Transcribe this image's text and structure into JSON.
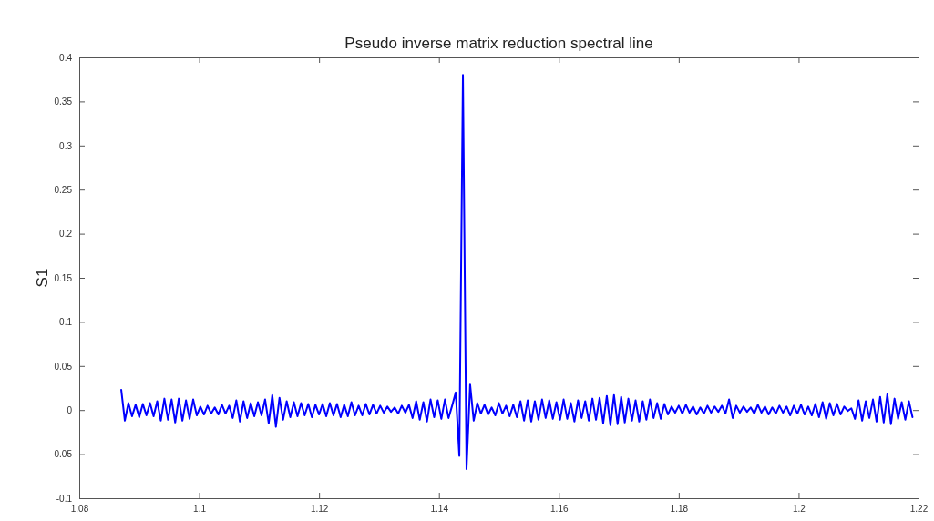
{
  "chart_data": {
    "type": "line",
    "title": "Pseudo inverse matrix reduction spectral line",
    "ylabel": "S1",
    "xlim": [
      1.08,
      1.22
    ],
    "ylim": [
      -0.1,
      0.4
    ],
    "xticks": [
      1.08,
      1.1,
      1.12,
      1.14,
      1.16,
      1.18,
      1.2,
      1.22
    ],
    "yticks": [
      -0.1,
      -0.05,
      0,
      0.05,
      0.1,
      0.15,
      0.2,
      0.25,
      0.3,
      0.35,
      0.4
    ],
    "grid": false,
    "marker": "none",
    "line_style": "solid",
    "series": [
      {
        "color": "#0000ff",
        "x": [
          1.087,
          1.0876,
          1.0882,
          1.0888,
          1.0894,
          1.09,
          1.0906,
          1.0912,
          1.0918,
          1.0924,
          1.093,
          1.0936,
          1.0942,
          1.0948,
          1.0954,
          1.096,
          1.0966,
          1.0972,
          1.0978,
          1.0984,
          1.099,
          1.0996,
          1.1002,
          1.1008,
          1.1014,
          1.102,
          1.1026,
          1.1032,
          1.1038,
          1.1044,
          1.105,
          1.1056,
          1.1062,
          1.1068,
          1.1074,
          1.108,
          1.1086,
          1.1092,
          1.1098,
          1.1104,
          1.111,
          1.1116,
          1.1122,
          1.1128,
          1.1134,
          1.114,
          1.1146,
          1.1152,
          1.1158,
          1.1164,
          1.117,
          1.1176,
          1.1182,
          1.1188,
          1.1194,
          1.12,
          1.1206,
          1.1212,
          1.1218,
          1.1224,
          1.123,
          1.1236,
          1.1242,
          1.1248,
          1.1254,
          1.126,
          1.1266,
          1.1272,
          1.1278,
          1.1284,
          1.129,
          1.1296,
          1.1302,
          1.1308,
          1.1314,
          1.132,
          1.1326,
          1.1332,
          1.1338,
          1.1344,
          1.135,
          1.1356,
          1.1362,
          1.1368,
          1.1374,
          1.138,
          1.1386,
          1.1392,
          1.1398,
          1.1404,
          1.141,
          1.1416,
          1.1422,
          1.1428,
          1.1434,
          1.144,
          1.1446,
          1.1452,
          1.1458,
          1.1464,
          1.147,
          1.1476,
          1.1482,
          1.1488,
          1.1494,
          1.15,
          1.1506,
          1.1512,
          1.1518,
          1.1524,
          1.153,
          1.1536,
          1.1542,
          1.1548,
          1.1554,
          1.156,
          1.1566,
          1.1572,
          1.1578,
          1.1584,
          1.159,
          1.1596,
          1.1602,
          1.1608,
          1.1614,
          1.162,
          1.1626,
          1.1632,
          1.1638,
          1.1644,
          1.165,
          1.1656,
          1.1662,
          1.1668,
          1.1674,
          1.168,
          1.1686,
          1.1692,
          1.1698,
          1.1704,
          1.171,
          1.1716,
          1.1722,
          1.1728,
          1.1734,
          1.174,
          1.1746,
          1.1752,
          1.1758,
          1.1764,
          1.177,
          1.1776,
          1.1782,
          1.1788,
          1.1794,
          1.18,
          1.1806,
          1.1812,
          1.1818,
          1.1824,
          1.183,
          1.1836,
          1.1842,
          1.1848,
          1.1854,
          1.186,
          1.1866,
          1.1872,
          1.1878,
          1.1884,
          1.189,
          1.1896,
          1.1902,
          1.1908,
          1.1914,
          1.192,
          1.1926,
          1.1932,
          1.1938,
          1.1944,
          1.195,
          1.1956,
          1.1962,
          1.1968,
          1.1974,
          1.198,
          1.1986,
          1.1992,
          1.1998,
          1.2004,
          1.201,
          1.2016,
          1.2022,
          1.2028,
          1.2034,
          1.204,
          1.2046,
          1.2052,
          1.2058,
          1.2064,
          1.207,
          1.2076,
          1.2082,
          1.2088,
          1.2094,
          1.21,
          1.2106,
          1.2112,
          1.2118,
          1.2124,
          1.213,
          1.2136,
          1.2142,
          1.2148,
          1.2154,
          1.216,
          1.2166,
          1.2172,
          1.2178,
          1.2184,
          1.219
        ],
        "values": [
          0.023,
          -0.012,
          0.008,
          -0.007,
          0.006,
          -0.008,
          0.007,
          -0.006,
          0.008,
          -0.007,
          0.01,
          -0.012,
          0.013,
          -0.011,
          0.012,
          -0.014,
          0.013,
          -0.012,
          0.011,
          -0.01,
          0.012,
          -0.006,
          0.004,
          -0.005,
          0.005,
          -0.004,
          0.003,
          -0.005,
          0.006,
          -0.004,
          0.005,
          -0.009,
          0.011,
          -0.013,
          0.01,
          -0.009,
          0.008,
          -0.007,
          0.009,
          -0.006,
          0.012,
          -0.015,
          0.017,
          -0.019,
          0.014,
          -0.011,
          0.01,
          -0.008,
          0.009,
          -0.007,
          0.008,
          -0.006,
          0.007,
          -0.008,
          0.006,
          -0.005,
          0.007,
          -0.007,
          0.008,
          -0.006,
          0.007,
          -0.008,
          0.006,
          -0.007,
          0.009,
          -0.006,
          0.005,
          -0.006,
          0.007,
          -0.005,
          0.006,
          -0.004,
          0.005,
          -0.003,
          0.004,
          -0.002,
          0.003,
          -0.004,
          0.005,
          -0.003,
          0.006,
          -0.009,
          0.01,
          -0.011,
          0.009,
          -0.013,
          0.012,
          -0.008,
          0.011,
          -0.01,
          0.012,
          -0.009,
          0.005,
          0.02,
          -0.052,
          0.38,
          -0.067,
          0.029,
          -0.012,
          0.008,
          -0.004,
          0.006,
          -0.005,
          0.003,
          -0.006,
          0.008,
          -0.004,
          0.005,
          -0.007,
          0.006,
          -0.008,
          0.01,
          -0.012,
          0.011,
          -0.013,
          0.01,
          -0.011,
          0.012,
          -0.009,
          0.011,
          -0.01,
          0.009,
          -0.011,
          0.012,
          -0.01,
          0.008,
          -0.013,
          0.011,
          -0.009,
          0.01,
          -0.012,
          0.013,
          -0.011,
          0.014,
          -0.015,
          0.016,
          -0.017,
          0.017,
          -0.016,
          0.015,
          -0.014,
          0.013,
          -0.012,
          0.011,
          -0.013,
          0.01,
          -0.011,
          0.012,
          -0.009,
          0.008,
          -0.01,
          0.007,
          -0.005,
          0.004,
          -0.003,
          0.005,
          -0.004,
          0.006,
          -0.003,
          0.004,
          -0.005,
          0.003,
          -0.004,
          0.005,
          -0.003,
          0.004,
          -0.002,
          0.005,
          -0.004,
          0.012,
          -0.009,
          0.005,
          -0.003,
          0.004,
          -0.002,
          0.003,
          -0.004,
          0.006,
          -0.003,
          0.004,
          -0.005,
          0.003,
          -0.004,
          0.005,
          -0.003,
          0.004,
          -0.006,
          0.005,
          -0.004,
          0.006,
          -0.005,
          0.004,
          -0.006,
          0.007,
          -0.008,
          0.009,
          -0.01,
          0.008,
          -0.006,
          0.007,
          -0.005,
          0.004,
          -0.001,
          0.002,
          -0.01,
          0.011,
          -0.012,
          0.01,
          -0.009,
          0.012,
          -0.013,
          0.015,
          -0.014,
          0.018,
          -0.016,
          0.013,
          -0.01,
          0.009,
          -0.011,
          0.01,
          -0.008
        ]
      }
    ]
  }
}
